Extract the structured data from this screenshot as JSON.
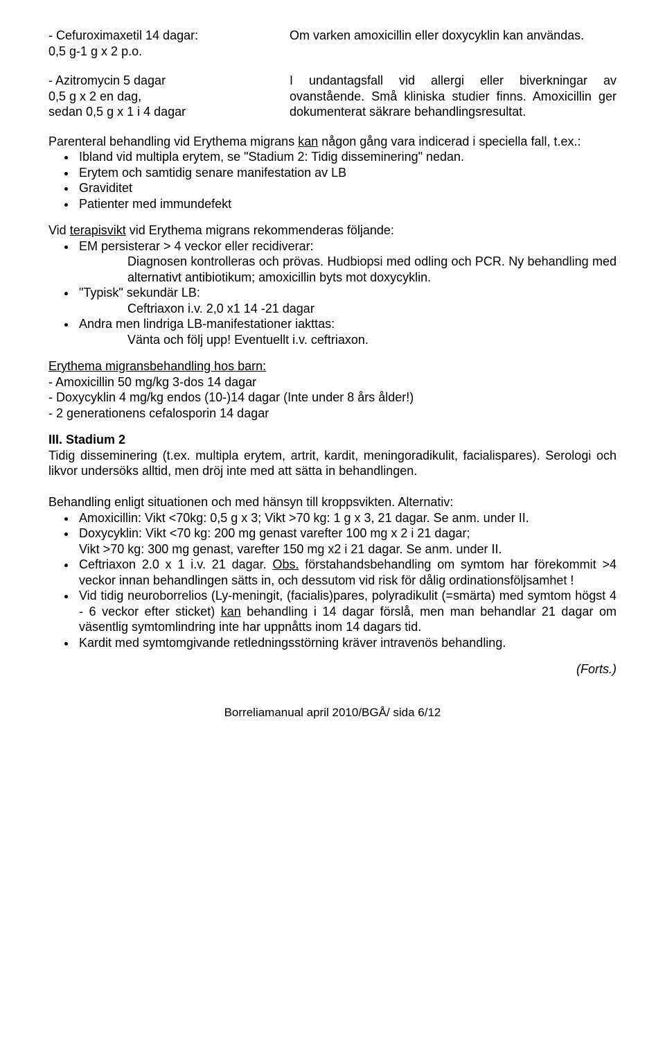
{
  "col_a1": "- Cefuroximaxetil 14 dagar:\n  0,5 g-1 g x 2 p.o.",
  "col_a2": "Om varken amoxicillin eller doxycyklin kan användas.",
  "col_b1": "- Azitromycin  5 dagar\n  0,5 g x 2  en dag,\n  sedan 0,5 g x 1  i 4 dagar",
  "col_b2": "I undantagsfall vid allergi eller biverkningar av ovanstående. Små kliniska studier finns. Amoxicillin ger dokumenterat säkrare behandlingsresultat.",
  "para1_a": "Parenteral behandling vid Erythema migrans ",
  "para1_kan": "kan",
  "para1_b": " någon gång vara indicerad i speciella fall, t.ex.:",
  "b1": "Ibland vid multipla erytem, se \"Stadium 2: Tidig disseminering\" nedan.",
  "b2": "Erytem och samtidig senare manifestation av LB",
  "b3": "Graviditet",
  "b4": "Patienter med immundefekt",
  "para2_a": "Vid ",
  "para2_u": "terapisvikt",
  "para2_b": " vid Erythema migrans rekommenderas följande:",
  "c1": "EM persisterar > 4 veckor eller recidiverar:",
  "c1_ind": "Diagnosen kontrolleras och prövas. Hudbiopsi med odling och PCR. Ny behandling med alternativt antibiotikum; amoxicillin byts mot doxycyklin.",
  "c2": "\"Typisk\" sekundär LB:",
  "c2_ind": "Ceftriaxon i.v. 2,0 x1 14 -21 dagar",
  "c3": "Andra men lindriga LB-manifestationer iakttas:",
  "c3_ind": "Vänta och följ upp! Eventuellt i.v. ceftriaxon.",
  "em_head": "Erythema migransbehandling hos barn:",
  "em1": " - Amoxicillin 50 mg/kg 3-dos 14 dagar",
  "em2": " - Doxycyklin 4 mg/kg endos (10-)14 dagar (Inte under 8 års ålder!)",
  "em3": " - 2 generationens cefalosporin 14 dagar",
  "h3": "III. Stadium 2",
  "st2_p": "Tidig disseminering (t.ex. multipla erytem, artrit, kardit, meningoradikulit, facialispares). Serologi och likvor undersöks alltid, men dröj inte med att sätta in behandlingen.",
  "beh": "Behandling enligt situationen och med hänsyn till kroppsvikten. Alternativ:",
  "d1": "Amoxicillin: Vikt <70kg: 0,5 g x 3;  Vikt >70 kg: 1 g x 3,  21 dagar. Se anm. under II.",
  "d2": "Doxycyklin: Vikt <70 kg:  200 mg genast varefter 100 mg x 2  i 21 dagar;\nVikt >70 kg: 300 mg genast, varefter 150 mg x2 i  21 dagar. Se anm. under II.",
  "d3_a": "Ceftriaxon 2.0 x 1 i.v. 21 dagar. ",
  "d3_obs": "Obs.",
  "d3_b": " förstahandsbehandling om symtom har förekommit >4 veckor innan behandlingen sätts in, och dessutom vid risk för dålig ordinationsföljsamhet !",
  "d4_a": "Vid tidig neuroborrelios (Ly-meningit, (facialis)pares, polyradikulit (=smärta) med symtom högst 4 - 6 veckor efter sticket) ",
  "d4_kan": "kan",
  "d4_b": " behandling i 14 dagar förslå, men man behandlar 21 dagar om väsentlig symtomlindring inte har uppnåtts inom 14 dagars tid.",
  "d5": "Kardit med symtomgivande retledningsstörning kräver intravenös behandling.",
  "forts": "(Forts.)",
  "footer": "Borreliamanual april 2010/BGÅ/ sida  6/12"
}
